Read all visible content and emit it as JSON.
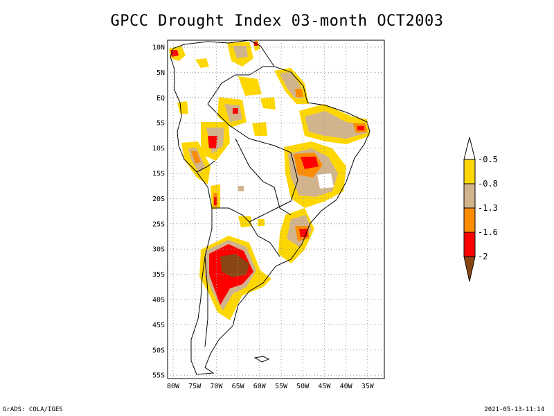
{
  "title": "GPCC Drought Index 03-month OCT2003",
  "footer": {
    "left": "GrADS: COLA/IGES",
    "right": "2021-05-13-11:14"
  },
  "colors": {
    "no_drought": "#ffffff",
    "moderate": "#ffd700",
    "severe": "#d2b48c",
    "very_severe": "#ff8c00",
    "extreme": "#ff0000",
    "exceptional": "#8b4513",
    "grid": "#9a9a9a"
  },
  "map": {
    "lat_labels": [
      "10N",
      "5N",
      "EQ",
      "5S",
      "10S",
      "15S",
      "20S",
      "25S",
      "30S",
      "35S",
      "40S",
      "45S",
      "50S",
      "55S"
    ],
    "lon_labels": [
      "80W",
      "75W",
      "70W",
      "65W",
      "60W",
      "55W",
      "50W",
      "45W",
      "40W",
      "35W"
    ]
  },
  "legend": {
    "labels": [
      "-0.5",
      "-0.8",
      "-1.3",
      "-1.6",
      "-2"
    ]
  }
}
